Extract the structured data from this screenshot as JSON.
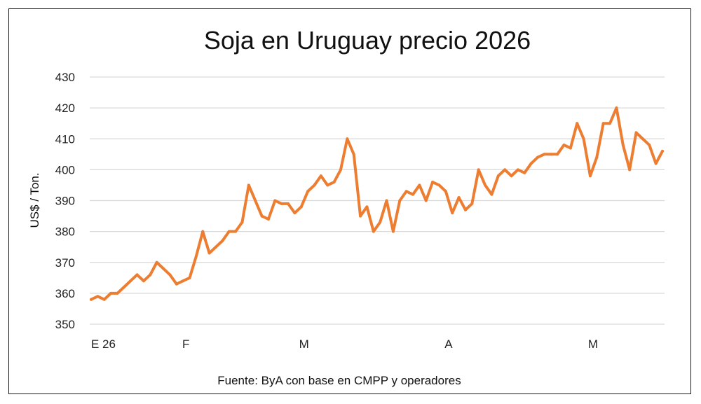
{
  "chart_data": {
    "type": "line",
    "title": "Soja en Uruguay precio 2026",
    "ylabel": "US$ / Ton.",
    "xlabel": "",
    "ylim": [
      350,
      430
    ],
    "yticks": [
      "350",
      "360",
      "370",
      "380",
      "390",
      "400",
      "410",
      "420",
      "430"
    ],
    "xtick_labels": [
      {
        "label": "E 26",
        "index": 0
      },
      {
        "label": "F",
        "index": 14
      },
      {
        "label": "M",
        "index": 32
      },
      {
        "label": "A",
        "index": 54
      },
      {
        "label": "M",
        "index": 76
      }
    ],
    "grid": true,
    "legend": "none",
    "line_color": "#ED7D31",
    "values": [
      358,
      359,
      358,
      360,
      360,
      362,
      364,
      366,
      364,
      366,
      370,
      368,
      366,
      363,
      364,
      365,
      372,
      380,
      373,
      375,
      377,
      380,
      380,
      383,
      395,
      390,
      385,
      384,
      390,
      389,
      389,
      386,
      388,
      393,
      395,
      398,
      395,
      396,
      400,
      410,
      405,
      385,
      388,
      380,
      383,
      390,
      380,
      390,
      393,
      392,
      395,
      390,
      396,
      395,
      393,
      386,
      391,
      387,
      389,
      400,
      395,
      392,
      398,
      400,
      398,
      400,
      399,
      402,
      404,
      405,
      405,
      405,
      408,
      407,
      415,
      410,
      398,
      404,
      415,
      415,
      420,
      408,
      400,
      412,
      410,
      408,
      402,
      406
    ],
    "source": "Fuente: ByA con base en CMPP y operadores"
  }
}
